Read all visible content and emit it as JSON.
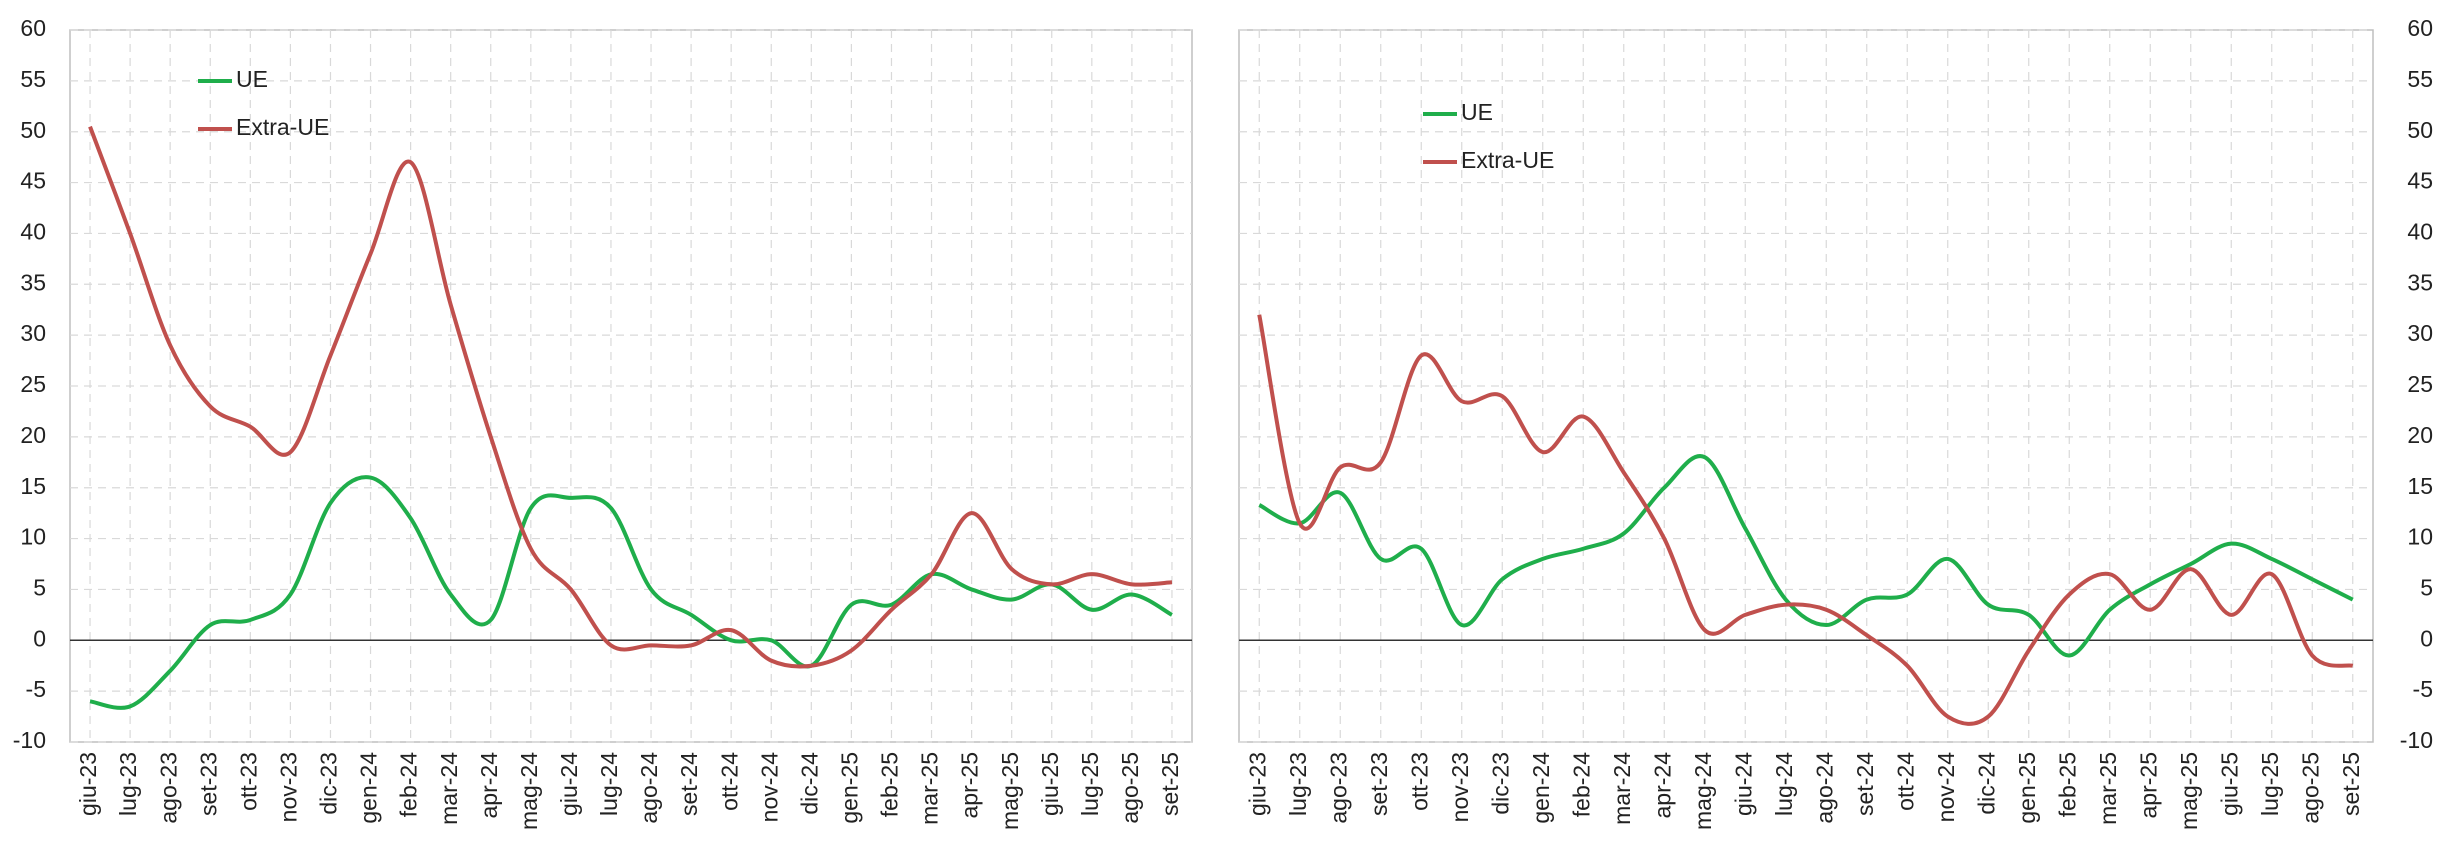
{
  "chart_data": [
    {
      "type": "line",
      "y_axis_side": "left",
      "grid": true,
      "categories": [
        "giu-23",
        "lug-23",
        "ago-23",
        "set-23",
        "ott-23",
        "nov-23",
        "dic-23",
        "gen-24",
        "feb-24",
        "mar-24",
        "apr-24",
        "mag-24",
        "giu-24",
        "lug-24",
        "ago-24",
        "set-24",
        "ott-24",
        "nov-24",
        "dic-24",
        "gen-25",
        "feb-25",
        "mar-25",
        "apr-25",
        "mag-25",
        "giu-25",
        "lug-25",
        "ago-25",
        "set-25"
      ],
      "ylim": [
        -10,
        60
      ],
      "yticks": [
        -10,
        -5,
        0,
        5,
        10,
        15,
        20,
        25,
        30,
        35,
        40,
        45,
        50,
        55,
        60
      ],
      "series": [
        {
          "name": "UE",
          "color": "#1fae4b",
          "values": [
            -6,
            -6.5,
            -3,
            1.5,
            2,
            4.5,
            13.5,
            16,
            12,
            4.5,
            2,
            13,
            14,
            13,
            5,
            2.5,
            0,
            0,
            -2.5,
            3.5,
            3.5,
            6.5,
            5,
            4,
            5.5,
            3,
            4.5,
            2.5
          ]
        },
        {
          "name": "Extra-UE",
          "color": "#c0504d",
          "values": [
            50.5,
            40,
            29,
            23,
            21,
            18.5,
            28,
            38,
            47,
            33,
            20,
            9,
            5,
            -0.5,
            -0.5,
            -0.5,
            1,
            -2,
            -2.5,
            -1,
            3,
            6.5,
            12.5,
            7,
            5.5,
            6.5,
            5.5,
            5.7
          ]
        }
      ]
    },
    {
      "type": "line",
      "y_axis_side": "right",
      "grid": true,
      "categories": [
        "giu-23",
        "lug-23",
        "ago-23",
        "set-23",
        "ott-23",
        "nov-23",
        "dic-23",
        "gen-24",
        "feb-24",
        "mar-24",
        "apr-24",
        "mag-24",
        "giu-24",
        "lug-24",
        "ago-24",
        "set-24",
        "ott-24",
        "nov-24",
        "dic-24",
        "gen-25",
        "feb-25",
        "mar-25",
        "apr-25",
        "mag-25",
        "giu-25",
        "lug-25",
        "ago-25",
        "set-25"
      ],
      "ylim": [
        -10,
        60
      ],
      "yticks": [
        -10,
        -5,
        0,
        5,
        10,
        15,
        20,
        25,
        30,
        35,
        40,
        45,
        50,
        55,
        60
      ],
      "series": [
        {
          "name": "UE",
          "color": "#1fae4b",
          "values": [
            13.3,
            11.5,
            14.5,
            8,
            9,
            1.5,
            6,
            8,
            9,
            10.5,
            15,
            18,
            11,
            4,
            1.5,
            4,
            4.5,
            8,
            3.5,
            2.5,
            -1.5,
            3,
            5.5,
            7.5,
            9.5,
            8,
            6,
            4
          ]
        },
        {
          "name": "Extra-UE",
          "color": "#c0504d",
          "values": [
            32,
            11.5,
            17,
            17.5,
            28,
            23.5,
            24,
            18.5,
            22,
            16.5,
            10,
            1,
            2.5,
            3.5,
            3,
            0.5,
            -2.5,
            -7.5,
            -7.5,
            -1,
            4.5,
            6.5,
            3,
            7,
            2.5,
            6.5,
            -1.5,
            -2.5
          ]
        }
      ]
    }
  ]
}
